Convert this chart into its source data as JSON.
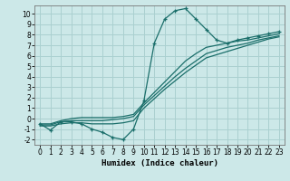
{
  "xlabel": "Humidex (Indice chaleur)",
  "bg_color": "#cce8e8",
  "grid_color": "#aad0d0",
  "line_color": "#1a6e6a",
  "xlim": [
    -0.5,
    23.5
  ],
  "ylim": [
    -2.5,
    10.8
  ],
  "xticks": [
    0,
    1,
    2,
    3,
    4,
    5,
    6,
    7,
    8,
    9,
    10,
    11,
    12,
    13,
    14,
    15,
    16,
    17,
    18,
    19,
    20,
    21,
    22,
    23
  ],
  "yticks": [
    -2,
    -1,
    0,
    1,
    2,
    3,
    4,
    5,
    6,
    7,
    8,
    9,
    10
  ],
  "line1_x": [
    0,
    1,
    2,
    3,
    4,
    5,
    6,
    7,
    8,
    9,
    10,
    11,
    12,
    13,
    14,
    15,
    16,
    17,
    18,
    19,
    20,
    21,
    22,
    23
  ],
  "line1_y": [
    -0.5,
    -1.1,
    -0.3,
    -0.3,
    -0.5,
    -1.0,
    -1.3,
    -1.8,
    -2.0,
    -1.0,
    1.7,
    7.2,
    9.5,
    10.3,
    10.5,
    9.5,
    8.5,
    7.5,
    7.2,
    7.5,
    7.7,
    7.9,
    8.1,
    8.3
  ],
  "line2_x": [
    0,
    1,
    2,
    3,
    4,
    5,
    6,
    7,
    8,
    9,
    10,
    11,
    12,
    13,
    14,
    15,
    16,
    17,
    18,
    19,
    20,
    21,
    22,
    23
  ],
  "line2_y": [
    -0.5,
    -0.5,
    -0.2,
    0.0,
    0.1,
    0.1,
    0.1,
    0.1,
    0.2,
    0.4,
    1.5,
    2.5,
    3.5,
    4.5,
    5.5,
    6.2,
    6.8,
    7.0,
    7.2,
    7.4,
    7.5,
    7.7,
    7.9,
    8.1
  ],
  "line3_x": [
    0,
    1,
    2,
    3,
    4,
    5,
    6,
    7,
    8,
    9,
    10,
    11,
    12,
    13,
    14,
    15,
    16,
    17,
    18,
    19,
    20,
    21,
    22,
    23
  ],
  "line3_y": [
    -0.6,
    -0.6,
    -0.3,
    -0.2,
    -0.2,
    -0.2,
    -0.2,
    -0.1,
    0.0,
    0.2,
    1.3,
    2.2,
    3.1,
    4.0,
    4.8,
    5.5,
    6.2,
    6.5,
    6.8,
    7.0,
    7.2,
    7.5,
    7.7,
    7.9
  ],
  "line4_x": [
    0,
    1,
    2,
    3,
    4,
    5,
    6,
    7,
    8,
    9,
    10,
    11,
    12,
    13,
    14,
    15,
    16,
    17,
    18,
    19,
    20,
    21,
    22,
    23
  ],
  "line4_y": [
    -0.7,
    -0.7,
    -0.5,
    -0.4,
    -0.4,
    -0.5,
    -0.5,
    -0.5,
    -0.4,
    -0.2,
    1.0,
    1.9,
    2.8,
    3.6,
    4.4,
    5.1,
    5.8,
    6.1,
    6.4,
    6.7,
    7.0,
    7.3,
    7.6,
    7.8
  ]
}
